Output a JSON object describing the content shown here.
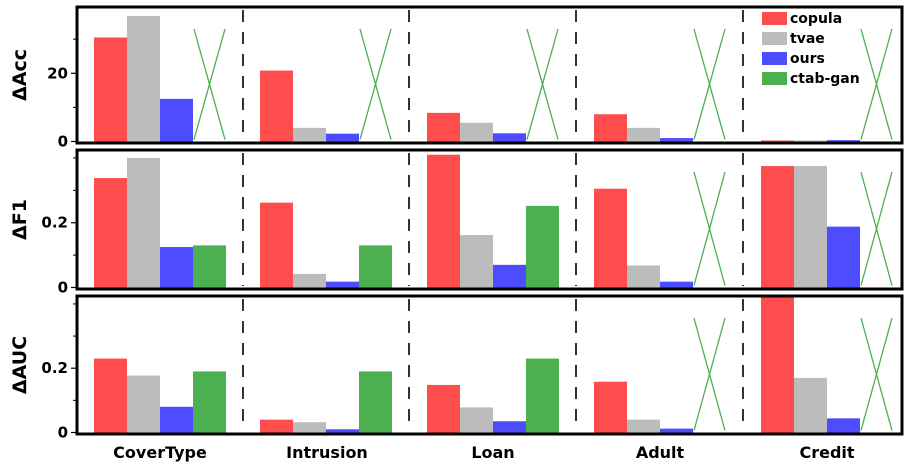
{
  "chart_data": {
    "type": "bar",
    "categories": [
      "CoverType",
      "Intrusion",
      "Loan",
      "Adult",
      "Credit"
    ],
    "series_names": [
      "copula",
      "tvae",
      "ours",
      "ctab-gan"
    ],
    "colors": {
      "copula": "#ff4d4d",
      "tvae": "#bcbcbc",
      "ours": "#4d4dff",
      "ctab-gan": "#4caf50",
      "missing_marker": "#4caf50"
    },
    "legend_position": "top-right",
    "panels": [
      {
        "ylabel": "ΔAcc",
        "ylim": [
          0,
          39
        ],
        "yticks": [
          0,
          20
        ],
        "ytick_labels": [
          "0",
          "20"
        ],
        "series": [
          {
            "name": "copula",
            "values": [
              30.5,
              20.8,
              8.4,
              8.0,
              0.3
            ]
          },
          {
            "name": "tvae",
            "values": [
              36.8,
              4.0,
              5.5,
              4.0,
              0.3
            ]
          },
          {
            "name": "ours",
            "values": [
              12.5,
              2.3,
              2.4,
              1.0,
              0.4
            ]
          },
          {
            "name": "ctab-gan",
            "values": [
              null,
              null,
              null,
              null,
              null
            ]
          }
        ]
      },
      {
        "ylabel": "ΔF1",
        "ylim": [
          0,
          0.42
        ],
        "yticks": [
          0,
          0.2
        ],
        "ytick_labels": [
          "0",
          "0.2"
        ],
        "series": [
          {
            "name": "copula",
            "values": [
              0.338,
              0.262,
              0.41,
              0.305,
              0.375
            ]
          },
          {
            "name": "tvae",
            "values": [
              0.4,
              0.042,
              0.162,
              0.068,
              0.375
            ]
          },
          {
            "name": "ours",
            "values": [
              0.125,
              0.018,
              0.07,
              0.018,
              0.188
            ]
          },
          {
            "name": "ctab-gan",
            "values": [
              0.13,
              0.13,
              0.252,
              null,
              null
            ]
          }
        ]
      },
      {
        "ylabel": "ΔAUC",
        "ylim": [
          0,
          0.42
        ],
        "yticks": [
          0,
          0.2
        ],
        "ytick_labels": [
          "0",
          "0.2"
        ],
        "series": [
          {
            "name": "copula",
            "values": [
              0.23,
              0.04,
              0.148,
              0.158,
              0.42
            ]
          },
          {
            "name": "tvae",
            "values": [
              0.177,
              0.032,
              0.078,
              0.04,
              0.17
            ]
          },
          {
            "name": "ours",
            "values": [
              0.08,
              0.01,
              0.035,
              0.012,
              0.044
            ]
          },
          {
            "name": "ctab-gan",
            "values": [
              0.19,
              0.19,
              0.23,
              null,
              null
            ]
          }
        ]
      }
    ]
  }
}
